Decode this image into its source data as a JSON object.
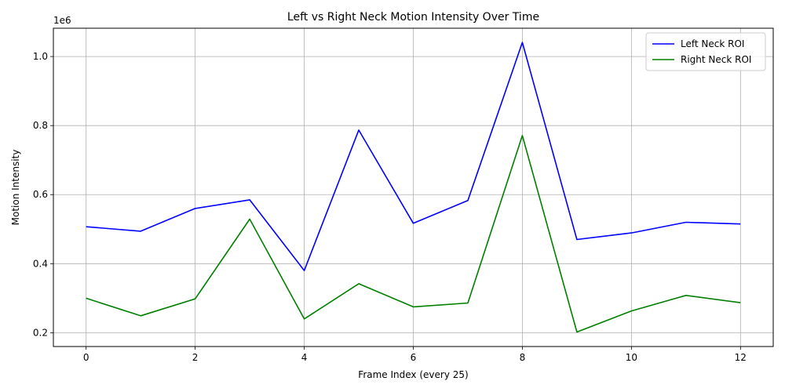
{
  "chart_data": {
    "type": "line",
    "title": "Left vs Right Neck Motion Intensity Over Time",
    "xlabel": "Frame Index (every 25)",
    "ylabel": "Motion Intensity",
    "y_offset_label": "1e6",
    "x": [
      0,
      1,
      2,
      3,
      4,
      5,
      6,
      7,
      8,
      9,
      10,
      11,
      12
    ],
    "xlim": [
      -0.6,
      12.6
    ],
    "ylim": [
      160000,
      1082000
    ],
    "x_ticks": [
      0,
      2,
      4,
      6,
      8,
      10,
      12
    ],
    "x_tick_labels": [
      "0",
      "2",
      "4",
      "6",
      "8",
      "10",
      "12"
    ],
    "y_ticks": [
      200000,
      400000,
      600000,
      800000,
      1000000
    ],
    "y_tick_labels": [
      "0.2",
      "0.4",
      "0.6",
      "0.8",
      "1.0"
    ],
    "grid": true,
    "legend_position": "top-right",
    "series": [
      {
        "name": "Left Neck ROI",
        "color": "#0000ff",
        "values": [
          507000,
          494000,
          560000,
          585000,
          380000,
          787000,
          517000,
          583000,
          1041000,
          470000,
          489000,
          520000,
          515000
        ]
      },
      {
        "name": "Right Neck ROI",
        "color": "#008000",
        "values": [
          300000,
          249000,
          298000,
          529000,
          240000,
          342000,
          275000,
          286000,
          771000,
          202000,
          263000,
          308000,
          287000
        ]
      }
    ]
  }
}
